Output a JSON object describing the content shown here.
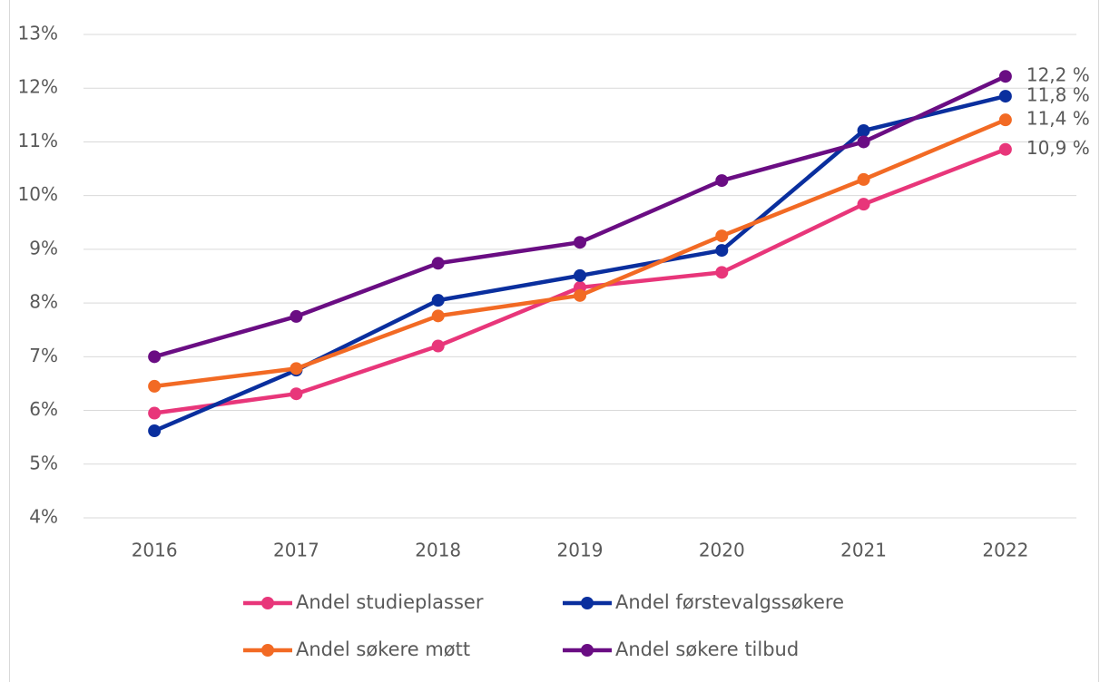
{
  "chart_data": {
    "type": "line",
    "categories": [
      "2016",
      "2017",
      "2018",
      "2019",
      "2020",
      "2021",
      "2022"
    ],
    "series": [
      {
        "name": "Andel studieplasser",
        "color": "#e8367a",
        "values": [
          5.95,
          6.31,
          7.2,
          8.29,
          8.57,
          9.84,
          10.86
        ],
        "value_labels": [
          null,
          null,
          null,
          null,
          null,
          null,
          "10,9 %"
        ]
      },
      {
        "name": "Andel førstevalgssøkere",
        "color": "#0a2f9e",
        "values": [
          5.62,
          6.75,
          8.05,
          8.51,
          8.98,
          11.21,
          11.85
        ],
        "value_labels": [
          null,
          null,
          null,
          null,
          null,
          null,
          "11,8 %"
        ]
      },
      {
        "name": "Andel søkere møtt",
        "color": "#f26a24",
        "values": [
          6.45,
          6.78,
          7.76,
          8.14,
          9.25,
          10.3,
          11.41
        ],
        "value_labels": [
          null,
          null,
          null,
          null,
          null,
          null,
          "11,4 %"
        ]
      },
      {
        "name": "Andel søkere tilbud",
        "color": "#6a0d83",
        "values": [
          7.0,
          7.75,
          8.74,
          9.13,
          10.28,
          11.0,
          12.22
        ],
        "value_labels": [
          null,
          null,
          null,
          null,
          null,
          null,
          "12,2 %"
        ]
      }
    ],
    "ylim": [
      4,
      13
    ],
    "yticks": [
      {
        "value": 4,
        "label": "4%"
      },
      {
        "value": 5,
        "label": "5%"
      },
      {
        "value": 6,
        "label": "6%"
      },
      {
        "value": 7,
        "label": "7%"
      },
      {
        "value": 8,
        "label": "8%"
      },
      {
        "value": 9,
        "label": "9%"
      },
      {
        "value": 10,
        "label": "10%"
      },
      {
        "value": 11,
        "label": "11%"
      },
      {
        "value": 12,
        "label": "12%"
      },
      {
        "value": 13,
        "label": "13%"
      }
    ],
    "grid": true,
    "legend": "bottom"
  }
}
